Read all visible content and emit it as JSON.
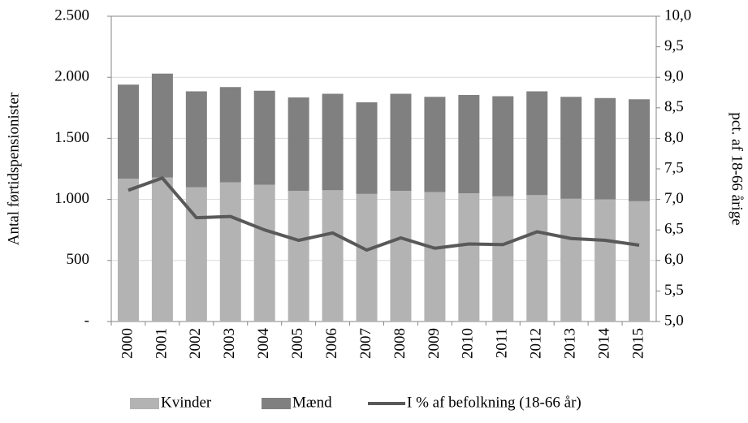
{
  "chart_data": {
    "type": "bar_line",
    "y_label": "Antal førtidspensionister",
    "y2_label": "pct. af 18-66 årige",
    "categories": [
      "2000",
      "2001",
      "2002",
      "2003",
      "2004",
      "2005",
      "2006",
      "2007",
      "2008",
      "2009",
      "2010",
      "2011",
      "2012",
      "2013",
      "2014",
      "2015"
    ],
    "series": [
      {
        "name": "Kvinder",
        "color": "#b3b3b3",
        "values": [
          1170,
          1180,
          1100,
          1140,
          1120,
          1070,
          1075,
          1045,
          1070,
          1060,
          1050,
          1025,
          1035,
          1005,
          1000,
          985
        ]
      },
      {
        "name": "Mænd",
        "color": "#808080",
        "values": [
          770,
          850,
          785,
          780,
          770,
          765,
          790,
          750,
          795,
          780,
          805,
          820,
          850,
          835,
          830,
          835
        ]
      },
      {
        "name": "I % af befolkning (18-66 år)",
        "color": "#595959",
        "axis": "y2",
        "values": [
          7.15,
          7.35,
          6.7,
          6.72,
          6.5,
          6.33,
          6.45,
          6.17,
          6.37,
          6.2,
          6.27,
          6.26,
          6.47,
          6.36,
          6.33,
          6.25
        ]
      }
    ],
    "ylim": [
      0,
      2500
    ],
    "yticks": [
      {
        "value": 0,
        "label": "-"
      },
      {
        "value": 500,
        "label": "500"
      },
      {
        "value": 1000,
        "label": "1.000"
      },
      {
        "value": 1500,
        "label": "1.500"
      },
      {
        "value": 2000,
        "label": "2.000"
      },
      {
        "value": 2500,
        "label": "2.500"
      }
    ],
    "y2lim": [
      5,
      10
    ],
    "y2ticks": [
      {
        "value": 5,
        "label": "5,0"
      },
      {
        "value": 5.5,
        "label": "5,5"
      },
      {
        "value": 6,
        "label": "6,0"
      },
      {
        "value": 6.5,
        "label": "6,5"
      },
      {
        "value": 7,
        "label": "7,0"
      },
      {
        "value": 7.5,
        "label": "7,5"
      },
      {
        "value": 8,
        "label": "8,0"
      },
      {
        "value": 8.5,
        "label": "8,5"
      },
      {
        "value": 9,
        "label": "9,0"
      },
      {
        "value": 9.5,
        "label": "9,5"
      },
      {
        "value": 10,
        "label": "10,0"
      }
    ],
    "grid": true
  }
}
